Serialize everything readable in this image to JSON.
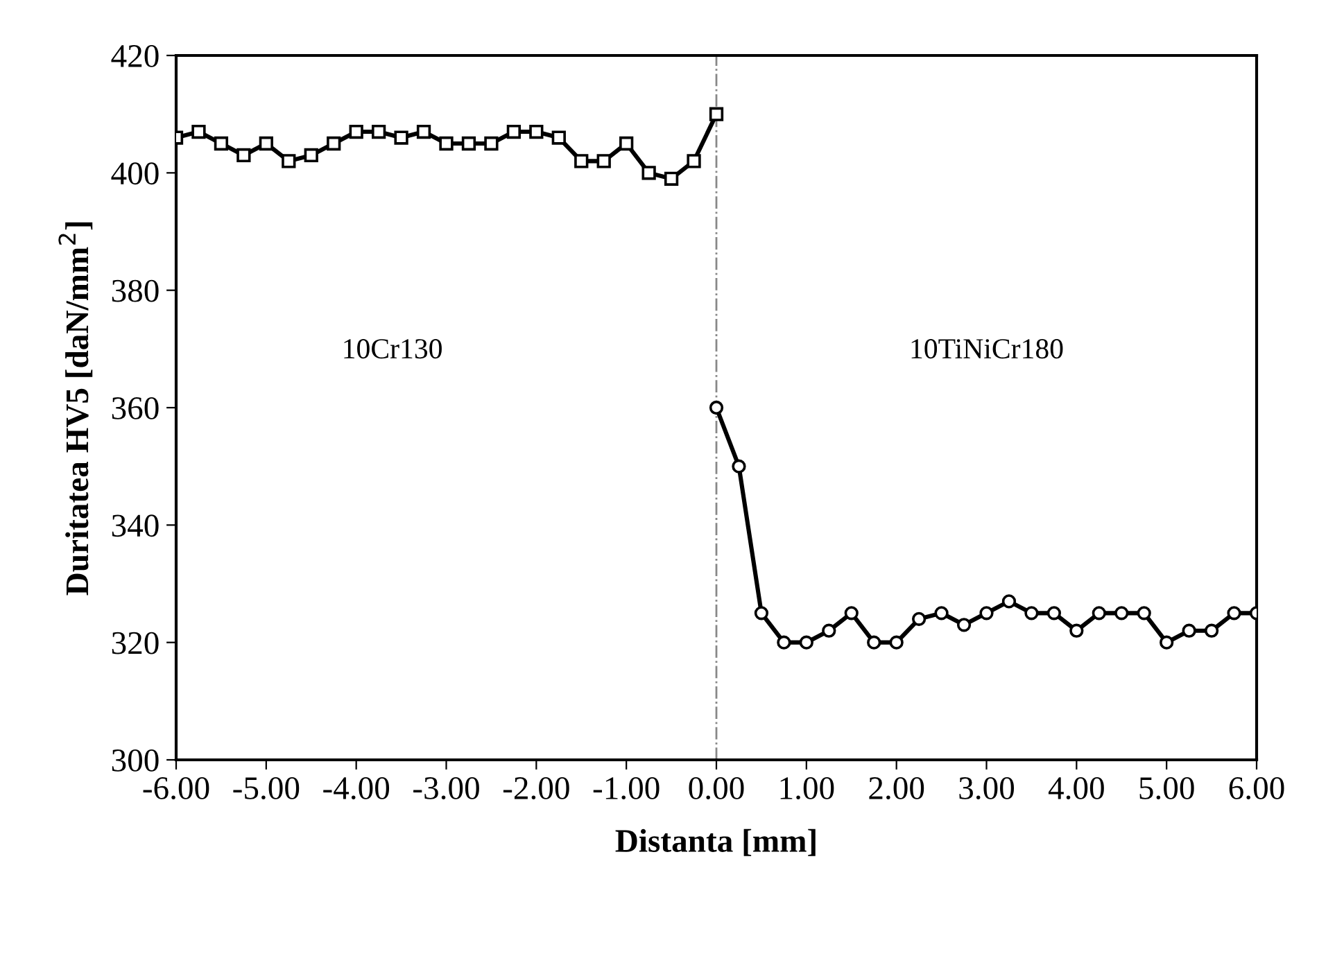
{
  "chart_data": {
    "type": "line",
    "xlabel": "Distanta [mm]",
    "ylabel": "Duritatea HV5 [daN/mm$^{2}$]",
    "xlim": [
      -6,
      6
    ],
    "ylim": [
      300,
      420
    ],
    "xticks": [
      {
        "value": -6,
        "label": "-6.00"
      },
      {
        "value": -5,
        "label": "-5.00"
      },
      {
        "value": -4,
        "label": "-4.00"
      },
      {
        "value": -3,
        "label": "-3.00"
      },
      {
        "value": -2,
        "label": "-2.00"
      },
      {
        "value": -1,
        "label": "-1.00"
      },
      {
        "value": 0,
        "label": "0.00"
      },
      {
        "value": 1,
        "label": "1.00"
      },
      {
        "value": 2,
        "label": "2.00"
      },
      {
        "value": 3,
        "label": "3.00"
      },
      {
        "value": 4,
        "label": "4.00"
      },
      {
        "value": 5,
        "label": "5.00"
      },
      {
        "value": 6,
        "label": "6.00"
      }
    ],
    "yticks": [
      300,
      320,
      340,
      360,
      380,
      400,
      420
    ],
    "grid": false,
    "legend": false,
    "line_style": "solid",
    "series": [
      {
        "color": "#000000",
        "marker": "square",
        "x": [
          -6,
          -5.75,
          -5.5,
          -5.25,
          -5,
          -4.75,
          -4.5,
          -4.25,
          -4,
          -3.75,
          -3.5,
          -3.25,
          -3,
          -2.75,
          -2.5,
          -2.25,
          -2,
          -1.75,
          -1.5,
          -1.25,
          -1,
          -0.75,
          -0.5,
          -0.25,
          0
        ],
        "values": [
          406,
          407,
          405,
          403,
          405,
          402,
          403,
          405,
          407,
          407,
          406,
          407,
          405,
          405,
          405,
          407,
          407,
          406,
          402,
          402,
          405,
          400,
          399,
          402,
          410
        ]
      },
      {
        "color": "#000000",
        "marker": "circle",
        "x": [
          0,
          0.25,
          0.5,
          0.75,
          1,
          1.25,
          1.5,
          1.75,
          2,
          2.25,
          2.5,
          2.75,
          3,
          3.25,
          3.5,
          3.75,
          4,
          4.25,
          4.5,
          4.75,
          5,
          5.25,
          5.5,
          5.75,
          6
        ],
        "values": [
          360,
          350,
          325,
          320,
          320,
          322,
          325,
          320,
          320,
          324,
          325,
          323,
          325,
          327,
          325,
          325,
          322,
          325,
          325,
          325,
          320,
          322,
          322,
          325,
          325
        ]
      }
    ],
    "ref_lines": [
      {
        "axis": "x",
        "value": 0,
        "color": "#888888",
        "line_style": "dashdot"
      }
    ],
    "annotations": [
      "10Cr130",
      "10TiNiCr180"
    ]
  }
}
